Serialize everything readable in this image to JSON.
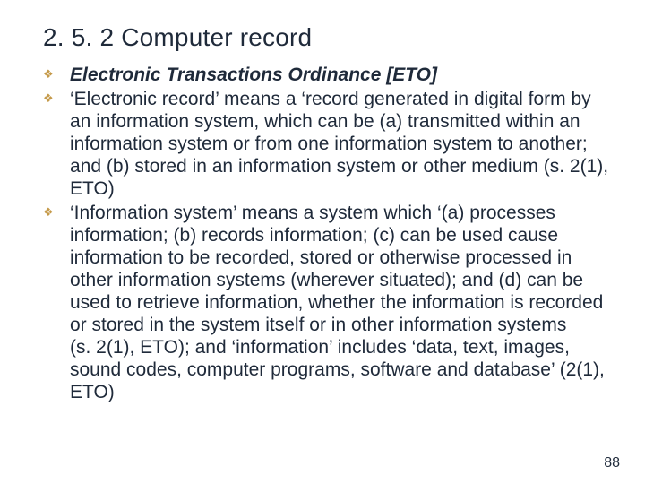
{
  "title": "2. 5. 2 Computer record",
  "bullets": [
    {
      "boldItalic": "Electronic Transactions Ordinance [ETO]",
      "rest": ""
    },
    {
      "boldItalic": "",
      "rest": "‘Electronic record’ means a ‘record generated in digital form by an information system, which can be (a) transmitted within an information system or from one information system to another; and (b) stored in an information system or other medium (s. 2(1), ETO)"
    },
    {
      "boldItalic": "",
      "rest": "‘Information system’ means a system which ‘(a) processes information; (b) records information; (c) can be used cause information to be recorded, stored or otherwise processed in other information systems (wherever situated); and (d) can be used to retrieve information, whether the information is recorded or stored in the system itself or in other information systems (s. 2(1), ETO); and ‘information’ includes ‘data, text, images, sound codes, computer programs, software and database’ (2(1), ETO)"
    }
  ],
  "pageNumber": "88",
  "style": {
    "backgroundColor": "#ffffff",
    "titleFontSize": 28,
    "bodyFontSize": 21,
    "bodyLineHeight": 1.19,
    "textColor": "#1f2a3a",
    "bulletColor": "#c59a4a",
    "bulletGlyph": "❖",
    "pageNumFontSize": 16,
    "fontFamily": "Arial"
  }
}
